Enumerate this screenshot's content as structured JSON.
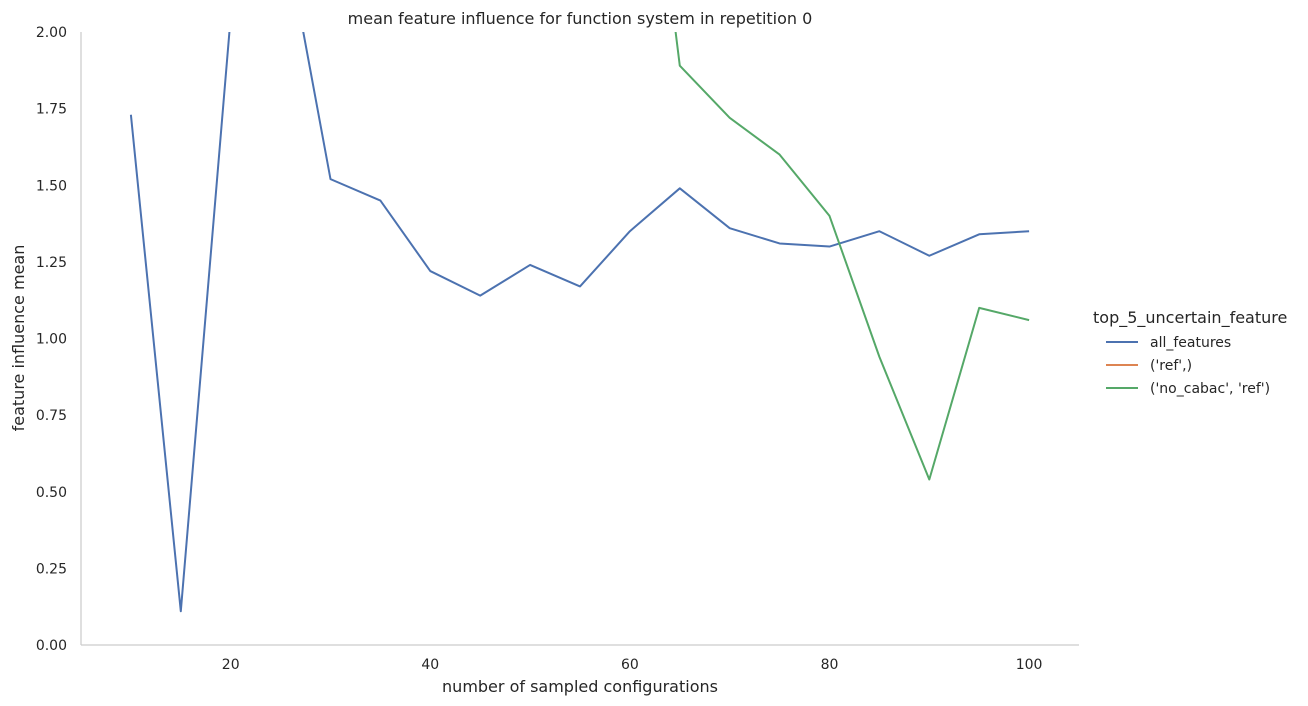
{
  "chart_data": {
    "type": "line",
    "title": "mean feature influence for function system in repetition 0",
    "xlabel": "number of sampled configurations",
    "ylabel": "feature influence mean",
    "xlim": [
      5,
      105
    ],
    "ylim": [
      0,
      2
    ],
    "xticks": [
      20,
      40,
      60,
      80,
      100
    ],
    "xtick_labels": [
      "20",
      "40",
      "60",
      "80",
      "100"
    ],
    "yticks": [
      0,
      0.25,
      0.5,
      0.75,
      1.0,
      1.25,
      1.5,
      1.75,
      2.0
    ],
    "ytick_labels": [
      "0.00",
      "0.25",
      "0.50",
      "0.75",
      "1.00",
      "1.25",
      "1.50",
      "1.75",
      "2.00"
    ],
    "grid": false,
    "legend": {
      "title": "top_5_uncertain_feature",
      "placement": "right"
    },
    "series": [
      {
        "name": "all_features",
        "color": "#4c72b0",
        "x": [
          10,
          15,
          20,
          25,
          30,
          35,
          40,
          45,
          50,
          55,
          60,
          65,
          70,
          75,
          80,
          85,
          90,
          95,
          100
        ],
        "y": [
          1.73,
          0.11,
          2.05,
          2.4,
          1.52,
          1.45,
          1.22,
          1.14,
          1.24,
          1.17,
          1.35,
          1.49,
          1.36,
          1.31,
          1.3,
          1.35,
          1.27,
          1.34,
          1.35
        ]
      },
      {
        "name": "('ref',)",
        "color": "#dd8452",
        "x": [],
        "y": []
      },
      {
        "name": "('no_cabac', 'ref')",
        "color": "#55a868",
        "x": [
          60,
          65,
          70,
          75,
          80,
          85,
          90,
          95,
          100
        ],
        "y": [
          3.2,
          1.89,
          1.72,
          1.6,
          1.4,
          0.94,
          0.54,
          1.1,
          1.06
        ]
      }
    ]
  }
}
